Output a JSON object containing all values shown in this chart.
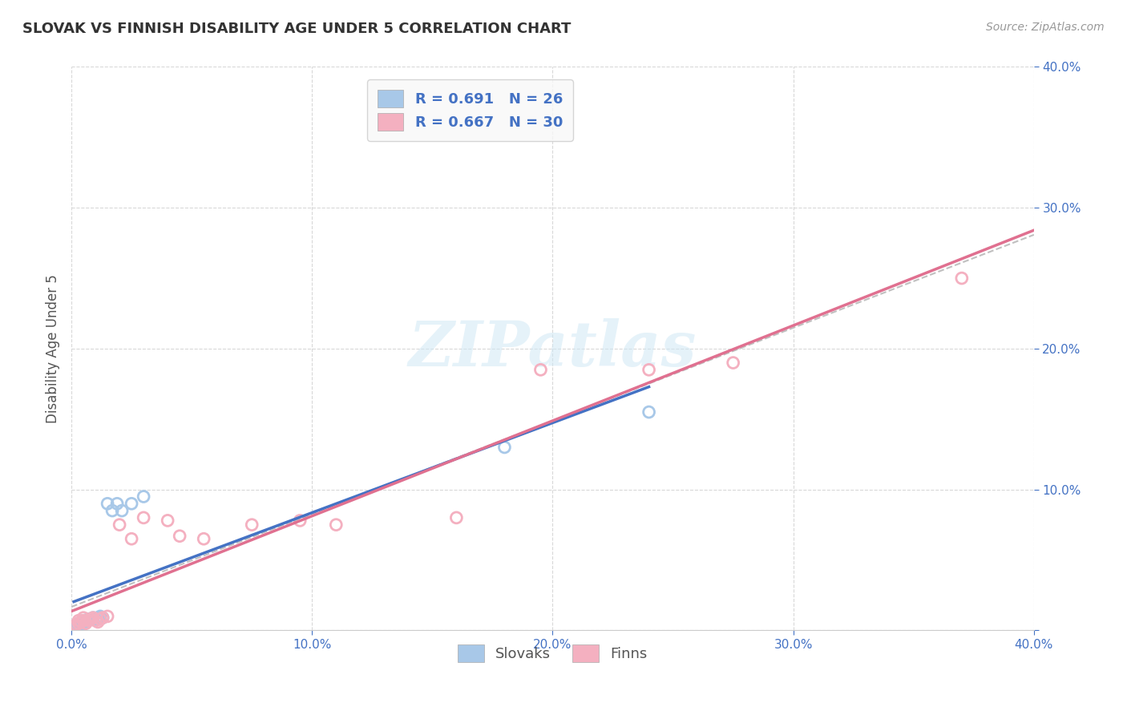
{
  "title": "SLOVAK VS FINNISH DISABILITY AGE UNDER 5 CORRELATION CHART",
  "source": "Source: ZipAtlas.com",
  "ylabel": "Disability Age Under 5",
  "xlim": [
    0.0,
    0.4
  ],
  "ylim": [
    0.0,
    0.4
  ],
  "slovak_R": 0.691,
  "slovak_N": 26,
  "finn_R": 0.667,
  "finn_N": 30,
  "slovak_color": "#a8c8e8",
  "finn_color": "#f4b0c0",
  "slovak_line_color": "#4472c4",
  "finn_line_color": "#e07090",
  "dashed_line_color": "#c0c0c0",
  "background_color": "#ffffff",
  "grid_color": "#d8d8d8",
  "title_color": "#333333",
  "source_color": "#999999",
  "tick_color": "#4472c4",
  "ylabel_color": "#555555",
  "watermark_color": "#d0e8f5",
  "slovaks_x": [
    0.001,
    0.002,
    0.002,
    0.003,
    0.003,
    0.004,
    0.004,
    0.005,
    0.005,
    0.006,
    0.006,
    0.007,
    0.008,
    0.009,
    0.01,
    0.011,
    0.012,
    0.013,
    0.015,
    0.017,
    0.019,
    0.021,
    0.025,
    0.03,
    0.18,
    0.24
  ],
  "slovaks_y": [
    0.002,
    0.003,
    0.004,
    0.004,
    0.005,
    0.004,
    0.006,
    0.005,
    0.007,
    0.006,
    0.007,
    0.008,
    0.008,
    0.009,
    0.008,
    0.009,
    0.01,
    0.009,
    0.09,
    0.085,
    0.09,
    0.085,
    0.09,
    0.095,
    0.13,
    0.155
  ],
  "finns_x": [
    0.001,
    0.002,
    0.003,
    0.003,
    0.004,
    0.005,
    0.005,
    0.006,
    0.007,
    0.008,
    0.009,
    0.01,
    0.011,
    0.012,
    0.013,
    0.015,
    0.02,
    0.025,
    0.03,
    0.04,
    0.045,
    0.055,
    0.075,
    0.095,
    0.11,
    0.16,
    0.195,
    0.24,
    0.275,
    0.37
  ],
  "finns_y": [
    0.003,
    0.004,
    0.005,
    0.007,
    0.006,
    0.007,
    0.009,
    0.005,
    0.007,
    0.008,
    0.009,
    0.007,
    0.006,
    0.008,
    0.009,
    0.01,
    0.075,
    0.065,
    0.08,
    0.078,
    0.067,
    0.065,
    0.075,
    0.078,
    0.075,
    0.08,
    0.185,
    0.185,
    0.19,
    0.25
  ]
}
